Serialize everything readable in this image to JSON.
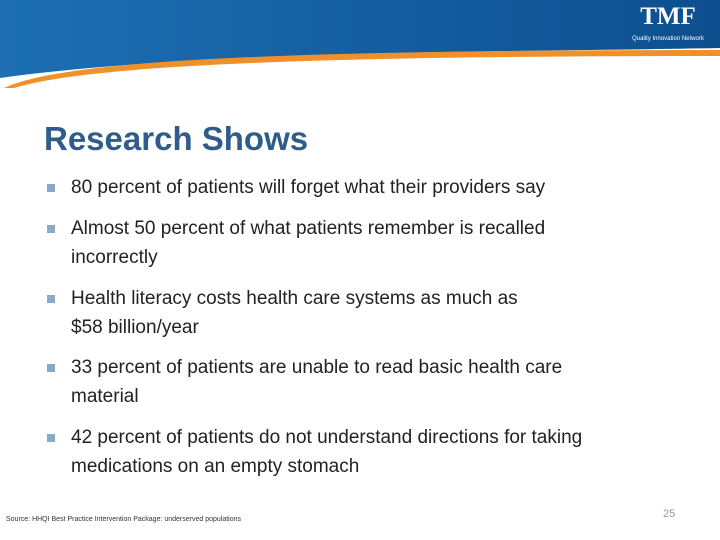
{
  "header": {
    "logo": "TMF",
    "logo_subtitle": "Quality Innovation Network"
  },
  "title": "Research Shows",
  "bullets": [
    {
      "lines": [
        "80 percent of patients will forget what their providers say"
      ]
    },
    {
      "lines": [
        "Almost 50 percent of what patients remember is recalled",
        "incorrectly"
      ]
    },
    {
      "lines": [
        "Health literacy costs health care systems as much as",
        "$58 billion/year"
      ]
    },
    {
      "lines": [
        "33 percent of patients are unable to read basic health care",
        "material"
      ]
    },
    {
      "lines": [
        "42 percent of patients do not understand directions for taking",
        "medications on an empty stomach"
      ]
    }
  ],
  "source": "Source: HHQI Best Practice Intervention Package: underserved populations",
  "page_number": "25"
}
